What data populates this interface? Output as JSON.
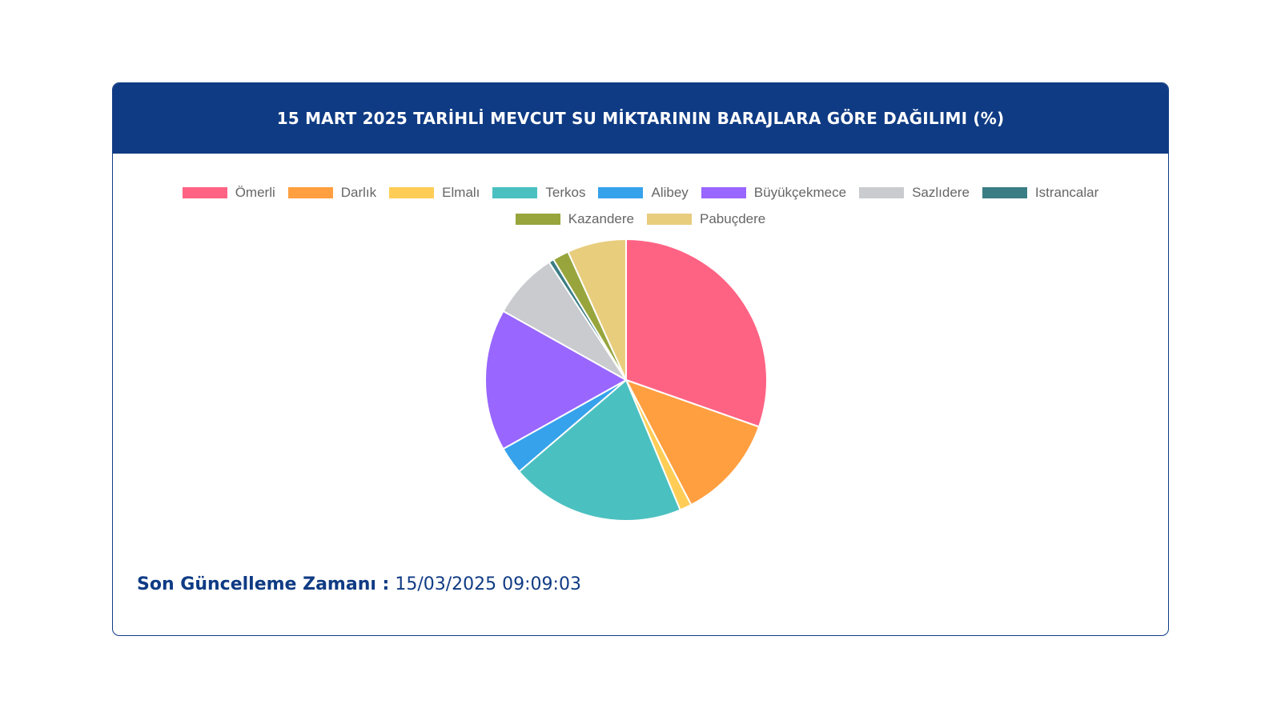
{
  "header": {
    "title": "15 MART 2025 TARİHLİ MEVCUT SU MİKTARININ BARAJLARA GÖRE DAĞILIMI (%)"
  },
  "chart_data": {
    "type": "pie",
    "title": "15 MART 2025 TARİHLİ MEVCUT SU MİKTARININ BARAJLARA GÖRE DAĞILIMI (%)",
    "legend_position": "top",
    "categories": [
      "Ömerli",
      "Darlık",
      "Elmalı",
      "Terkos",
      "Alibey",
      "Büyükçekmece",
      "Sazlıdere",
      "Istrancalar",
      "Kazandere",
      "Pabuçdere"
    ],
    "values": [
      31.0,
      12.2,
      1.4,
      20.4,
      3.2,
      16.6,
      7.8,
      0.6,
      1.9,
      6.9
    ],
    "colors": [
      "#ff6384",
      "#ff9f40",
      "#ffcd56",
      "#4bc0c0",
      "#36a2eb",
      "#9966ff",
      "#c9cbcf",
      "#3b7d84",
      "#97a53c",
      "#e8cd7d"
    ]
  },
  "footer": {
    "label": "Son Güncelleme Zamanı :",
    "value": "15/03/2025 09:09:03"
  }
}
